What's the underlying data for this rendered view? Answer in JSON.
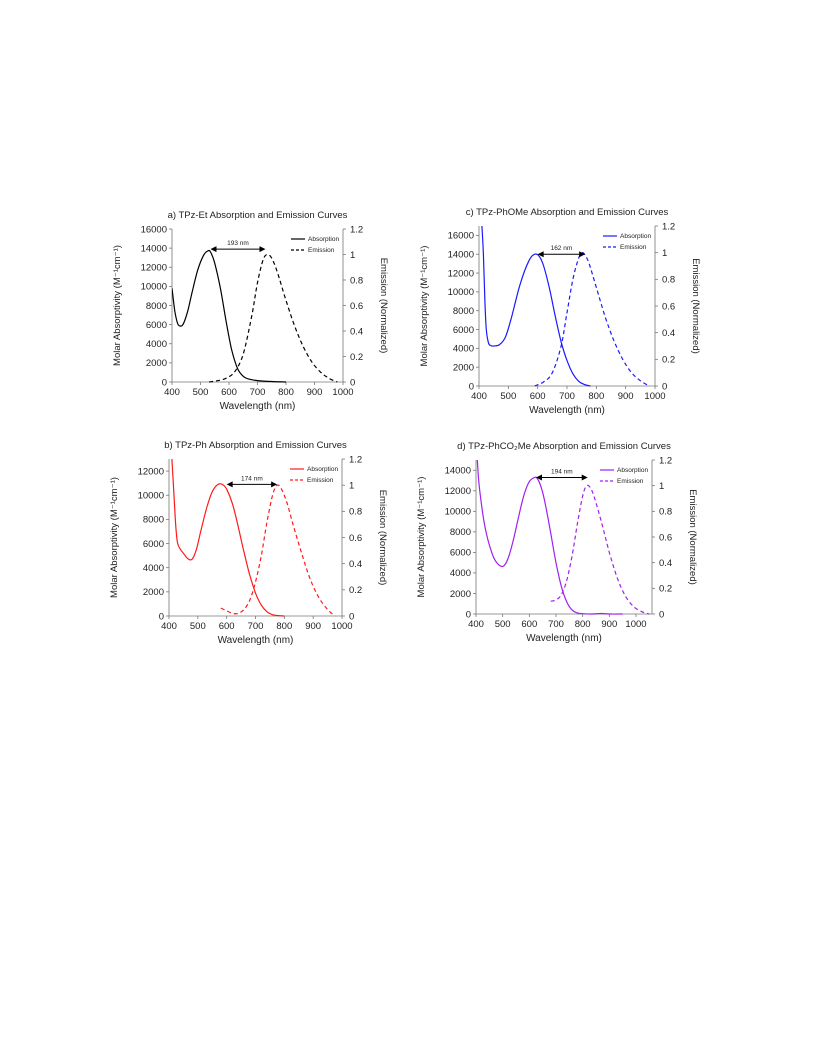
{
  "chart_data": [
    {
      "id": "a",
      "type": "line",
      "title": "a) TPz-Et Absorption and Emission Curves",
      "xlabel": "Wavelength (nm)",
      "ylabel": "Molar Absorptivity (M⁻¹cm⁻¹)",
      "y2label": "Emission (Normalized)",
      "xlim": [
        400,
        1000
      ],
      "ylim": [
        0,
        16000
      ],
      "y2lim": [
        0,
        1.2
      ],
      "xticks": [
        400,
        500,
        600,
        700,
        800,
        900,
        1000
      ],
      "yticks": [
        0,
        2000,
        4000,
        6000,
        8000,
        10000,
        12000,
        14000,
        16000
      ],
      "y2ticks": [
        0,
        0.2,
        0.4,
        0.6,
        0.8,
        1,
        1.2
      ],
      "legend_position": "top-right",
      "series": [
        {
          "name": "Absorption",
          "axis": "left",
          "dash": false,
          "color": "#000000",
          "x": [
            400,
            410,
            420,
            430,
            440,
            455,
            470,
            490,
            510,
            525,
            535,
            550,
            570,
            590,
            610,
            630,
            650,
            670,
            700,
            750,
            800
          ],
          "y": [
            9800,
            7400,
            6100,
            5850,
            6100,
            7400,
            9300,
            11700,
            13200,
            13700,
            13600,
            12400,
            9800,
            6300,
            3300,
            1400,
            600,
            300,
            150,
            50,
            0
          ]
        },
        {
          "name": "Emission",
          "axis": "right",
          "dash": true,
          "color": "#000000",
          "x": [
            530,
            560,
            590,
            620,
            650,
            680,
            700,
            720,
            735,
            750,
            770,
            800,
            830,
            860,
            890,
            920,
            950,
            980
          ],
          "y": [
            0,
            0.01,
            0.03,
            0.08,
            0.22,
            0.52,
            0.78,
            0.96,
            1.0,
            0.97,
            0.86,
            0.64,
            0.44,
            0.28,
            0.16,
            0.08,
            0.03,
            0.0
          ]
        }
      ],
      "annotation": {
        "text": "193 nm",
        "x1": 535,
        "x2": 728,
        "y": 13900
      }
    },
    {
      "id": "c",
      "type": "line",
      "title": "c) TPz-PhOMe Absorption and Emission Curves",
      "xlabel": "Wavelength (nm)",
      "ylabel": "Molar Absorptivity (M⁻¹cm⁻¹)",
      "y2label": "Emission (Normalized)",
      "xlim": [
        400,
        1000
      ],
      "ylim": [
        0,
        17000
      ],
      "y2lim": [
        0,
        1.2
      ],
      "xticks": [
        400,
        500,
        600,
        700,
        800,
        900,
        1000
      ],
      "yticks": [
        0,
        2000,
        4000,
        6000,
        8000,
        10000,
        12000,
        14000,
        16000
      ],
      "y2ticks": [
        0,
        0.2,
        0.4,
        0.6,
        0.8,
        1,
        1.2
      ],
      "legend_position": "top-right",
      "series": [
        {
          "name": "Absorption",
          "axis": "left",
          "dash": false,
          "color": "#1a1aff",
          "x": [
            410,
            415,
            420,
            425,
            432,
            440,
            450,
            470,
            490,
            510,
            540,
            570,
            590,
            605,
            620,
            640,
            660,
            680,
            700,
            720,
            740,
            760,
            780
          ],
          "y": [
            17000,
            14000,
            9000,
            6000,
            4600,
            4300,
            4250,
            4400,
            5200,
            7200,
            10800,
            13300,
            14000,
            13800,
            12800,
            10400,
            7400,
            4700,
            2700,
            1300,
            500,
            150,
            0
          ]
        },
        {
          "name": "Emission",
          "axis": "right",
          "dash": true,
          "color": "#1a1aff",
          "x": [
            590,
            620,
            650,
            680,
            700,
            720,
            740,
            752,
            762,
            775,
            800,
            830,
            860,
            890,
            920,
            950,
            980
          ],
          "y": [
            0,
            0.03,
            0.1,
            0.3,
            0.55,
            0.8,
            0.96,
            1.0,
            0.98,
            0.92,
            0.74,
            0.52,
            0.34,
            0.2,
            0.1,
            0.04,
            0.0
          ]
        }
      ],
      "annotation": {
        "text": "162 nm",
        "x1": 600,
        "x2": 762,
        "y": 14000
      }
    },
    {
      "id": "b",
      "type": "line",
      "title": "b) TPz-Ph Absorption and Emission Curves",
      "xlabel": "Wavelength (nm)",
      "ylabel": "Molar Absorptivity (M⁻¹cm⁻¹)",
      "y2label": "Emission (Normalized)",
      "xlim": [
        400,
        1000
      ],
      "ylim": [
        0,
        13000
      ],
      "y2lim": [
        0,
        1.2
      ],
      "xticks": [
        400,
        500,
        600,
        700,
        800,
        900,
        1000
      ],
      "yticks": [
        0,
        2000,
        4000,
        6000,
        8000,
        10000,
        12000
      ],
      "y2ticks": [
        0,
        0.2,
        0.4,
        0.6,
        0.8,
        1,
        1.2
      ],
      "legend_position": "top-right",
      "series": [
        {
          "name": "Absorption",
          "axis": "left",
          "dash": false,
          "color": "#ff1a1a",
          "x": [
            410,
            415,
            420,
            425,
            430,
            440,
            450,
            465,
            480,
            495,
            510,
            530,
            550,
            570,
            585,
            600,
            620,
            640,
            660,
            680,
            700,
            720,
            740,
            760,
            780,
            800
          ],
          "y": [
            13000,
            11000,
            8800,
            7000,
            6000,
            5500,
            5200,
            4750,
            4700,
            5500,
            7000,
            8900,
            10300,
            10900,
            10900,
            10500,
            9300,
            7400,
            5300,
            3400,
            1900,
            900,
            350,
            100,
            30,
            0
          ]
        },
        {
          "name": "Emission",
          "axis": "right",
          "dash": true,
          "color": "#ff1a1a",
          "x": [
            580,
            600,
            620,
            640,
            660,
            680,
            700,
            720,
            740,
            760,
            775,
            790,
            810,
            830,
            860,
            890,
            920,
            950,
            975
          ],
          "y": [
            0.06,
            0.04,
            0.02,
            0.02,
            0.05,
            0.12,
            0.26,
            0.46,
            0.72,
            0.93,
            1.0,
            0.97,
            0.86,
            0.7,
            0.48,
            0.28,
            0.14,
            0.05,
            0.0
          ]
        }
      ],
      "annotation": {
        "text": "174 nm",
        "x1": 600,
        "x2": 775,
        "y": 10900
      }
    },
    {
      "id": "d",
      "type": "line",
      "title": "d) TPz-PhCO₂Me Absorption and Emission Curves",
      "xlabel": "Wavelength (nm)",
      "ylabel": "Molar Absorptivity (M⁻¹cm⁻¹)",
      "y2label": "Emission (Normalized)",
      "xlim": [
        400,
        1060
      ],
      "ylim": [
        0,
        15000
      ],
      "y2lim": [
        0,
        1.2
      ],
      "xticks": [
        400,
        500,
        600,
        700,
        800,
        900,
        1000
      ],
      "yticks": [
        0,
        2000,
        4000,
        6000,
        8000,
        10000,
        12000,
        14000
      ],
      "y2ticks": [
        0,
        0.2,
        0.4,
        0.6,
        0.8,
        1,
        1.2
      ],
      "legend_position": "top-right",
      "series": [
        {
          "name": "Absorption",
          "axis": "left",
          "dash": false,
          "color": "#a020f0",
          "x": [
            405,
            410,
            420,
            430,
            440,
            455,
            470,
            490,
            505,
            520,
            540,
            560,
            580,
            600,
            620,
            630,
            645,
            660,
            680,
            700,
            720,
            740,
            760,
            780,
            800,
            830,
            870,
            900,
            950
          ],
          "y": [
            15000,
            13000,
            10800,
            9000,
            7700,
            6300,
            5300,
            4700,
            4700,
            5400,
            7200,
            9500,
            11600,
            12900,
            13300,
            13200,
            12300,
            10700,
            7900,
            5000,
            2700,
            1200,
            400,
            100,
            30,
            0,
            50,
            0,
            0
          ]
        },
        {
          "name": "Emission",
          "axis": "right",
          "dash": true,
          "color": "#a020f0",
          "x": [
            680,
            700,
            720,
            740,
            760,
            780,
            800,
            815,
            830,
            845,
            870,
            900,
            930,
            960,
            990,
            1020,
            1050
          ],
          "y": [
            0.1,
            0.11,
            0.15,
            0.26,
            0.45,
            0.7,
            0.92,
            1.0,
            0.98,
            0.9,
            0.72,
            0.48,
            0.28,
            0.14,
            0.06,
            0.02,
            0.0
          ]
        }
      ],
      "annotation": {
        "text": "194 nm",
        "x1": 625,
        "x2": 819,
        "y": 13300
      }
    }
  ]
}
